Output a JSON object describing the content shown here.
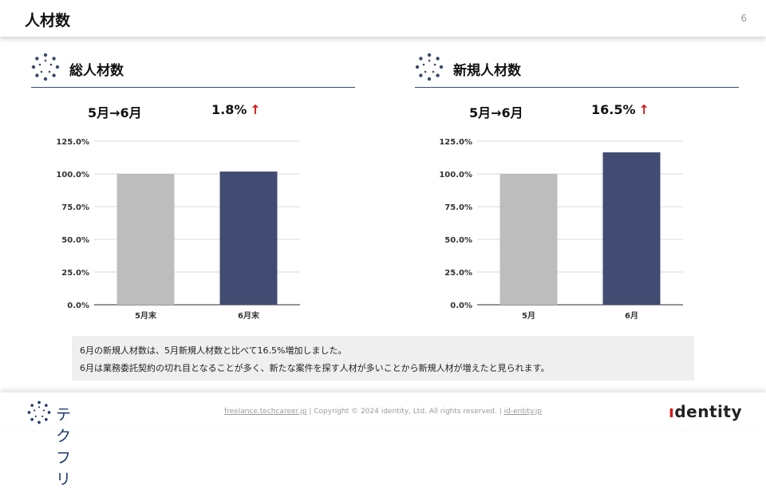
{
  "page": {
    "title": "人材数",
    "number": "6"
  },
  "sections": [
    {
      "title": "総人材数",
      "period": "5月→6月",
      "change": "1.8%",
      "arrow": "↑"
    },
    {
      "title": "新規人材数",
      "period": "5月→6月",
      "change": "16.5%",
      "arrow": "↑"
    }
  ],
  "chart_data": [
    {
      "type": "bar",
      "categories": [
        "5月末",
        "6月末"
      ],
      "values": [
        100.0,
        101.8
      ],
      "ylim": [
        0,
        125
      ],
      "yticks": [
        "0.0%",
        "25.0%",
        "50.0%",
        "75.0%",
        "100.0%",
        "125.0%"
      ],
      "ytick_values": [
        0,
        25,
        50,
        75,
        100,
        125
      ],
      "colors": [
        "#bdbdbd",
        "#424c72"
      ],
      "grid": true
    },
    {
      "type": "bar",
      "categories": [
        "5月",
        "6月"
      ],
      "values": [
        100.0,
        116.5
      ],
      "ylim": [
        0,
        125
      ],
      "yticks": [
        "0.0%",
        "25.0%",
        "50.0%",
        "75.0%",
        "100.0%",
        "125.0%"
      ],
      "ytick_values": [
        0,
        25,
        50,
        75,
        100,
        125
      ],
      "colors": [
        "#bdbdbd",
        "#424c72"
      ],
      "grid": true
    }
  ],
  "note": {
    "line1": "6月の新規人材数は、5月新規人材数と比べて16.5%増加しました。",
    "line2": "6月は業務委託契約の切れ目となることが多く、新たな案件を探す人材が多いことから新規人材が増えたと見られます。"
  },
  "footer": {
    "brand_left": "テクフリ",
    "link1": "freelance.techcareer.jp",
    "sep1": " | ",
    "copyright": "Copyright © 2024 identity, Ltd. All rights reserved.",
    "sep2": " | ",
    "link2": "id-entity.jp",
    "brand_right_pre": "ı",
    "brand_right_rest": "dentity"
  },
  "colors": {
    "accent": "#424c72",
    "baseline": "#bdbdbd",
    "up_arrow": "#d11a1a",
    "rule": "#3a4a6a"
  }
}
